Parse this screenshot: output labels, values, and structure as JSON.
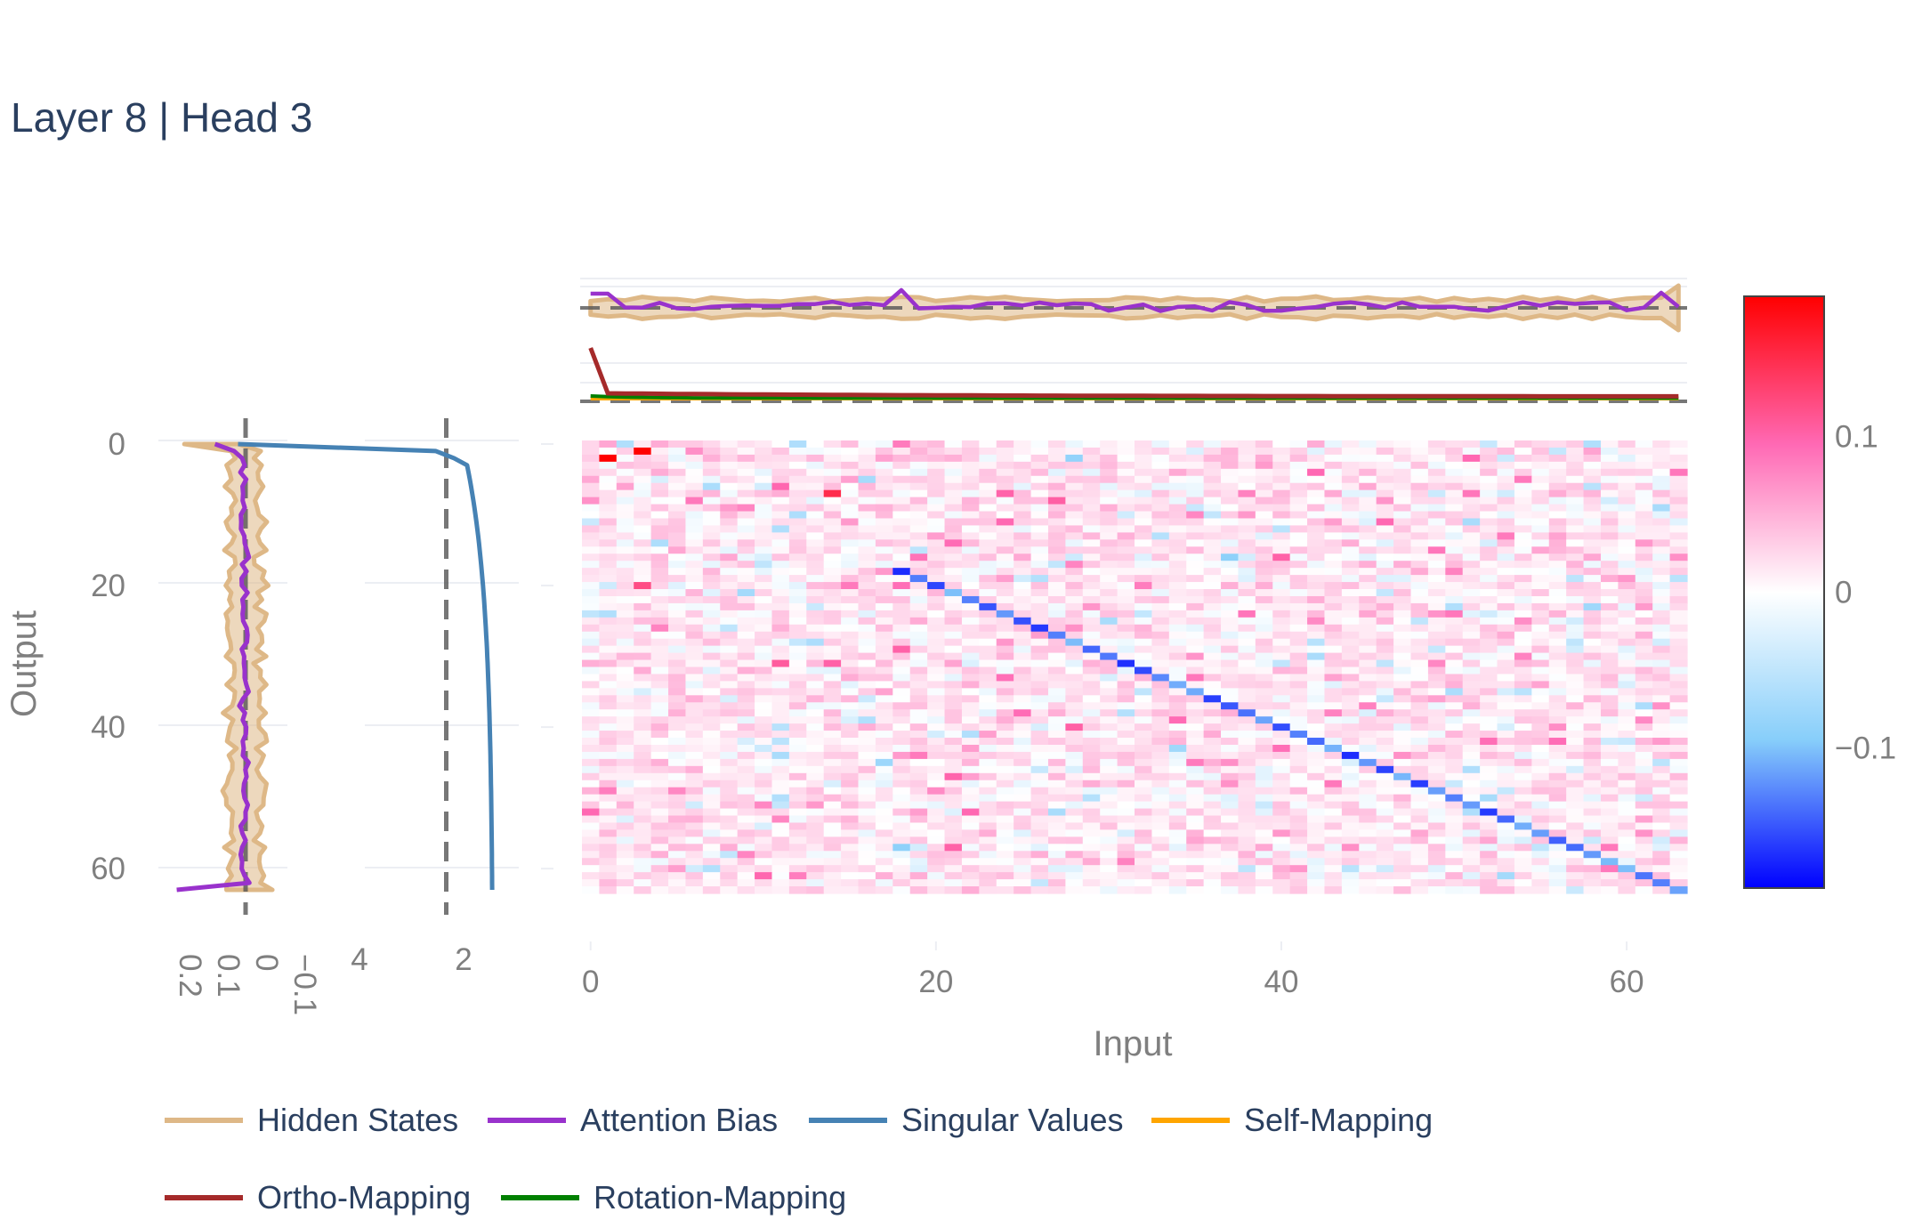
{
  "chart_data": {
    "type": "heatmap",
    "title": "Layer 8 | Head 3",
    "xlabel": "Input",
    "ylabel": "Output",
    "grid_size": 64,
    "heatmap": {
      "x_ticks": [
        "0",
        "20",
        "40",
        "60"
      ],
      "y_ticks": [
        "0",
        "20",
        "40",
        "60"
      ],
      "xlim": [
        0,
        63
      ],
      "ylim": [
        63,
        0
      ],
      "zlim": [
        -0.19,
        0.19
      ],
      "diagonal_values_range": [
        -0.17,
        -0.1
      ],
      "off_diagonal_range": [
        -0.12,
        0.19
      ],
      "notable_cells": [
        {
          "row": 2,
          "col": 1,
          "value": 0.19
        },
        {
          "row": 1,
          "col": 3,
          "value": 0.19
        },
        {
          "row": 7,
          "col": 14,
          "value": 0.15
        },
        {
          "row": 18,
          "col": 18,
          "value": -0.17
        },
        {
          "row": 20,
          "col": 3,
          "value": 0.12
        }
      ]
    },
    "colorbar": {
      "ticks": [
        "0.1",
        "0",
        "−0.1"
      ],
      "colors": [
        "#0000ff",
        "#87cefa",
        "#ffffff",
        "#ff69b4",
        "#ff0000"
      ]
    },
    "left_profile": {
      "tick_labels": [
        "0.2",
        "0.1",
        "0",
        "−0.1"
      ],
      "xlim": [
        0.25,
        -0.14
      ],
      "hidden_states_band": {
        "typical_halfwidth": 0.04
      },
      "attention_bias": {
        "start": 0.08,
        "end": 0.12,
        "range_middle": [
          -0.02,
          0.03
        ]
      }
    },
    "singular_values": {
      "tick_labels": [
        "4",
        "2"
      ],
      "xlim": [
        5.3,
        -0.2
      ],
      "values_head": [
        5.0,
        1.2,
        0.85,
        0.6
      ],
      "values_tail_end": 0.1,
      "reference_line": 1.0
    },
    "top_panel": {
      "hidden_states_band": {
        "level": 0.0,
        "halfwidth": 0.02
      },
      "attention_bias": {
        "range": [
          -0.03,
          0.04
        ]
      },
      "ortho_mapping": {
        "start": 1.0,
        "drops_to": 0.15,
        "end": 0.09
      },
      "rotation_mapping": {
        "start": 0.1,
        "end": 0.06
      },
      "self_mapping": {
        "level": 0.05
      }
    },
    "series": [
      {
        "name": "Hidden States",
        "color": "#deb887"
      },
      {
        "name": "Attention Bias",
        "color": "#9932cc"
      },
      {
        "name": "Singular Values",
        "color": "#4682b4"
      },
      {
        "name": "Self-Mapping",
        "color": "#ffa500"
      },
      {
        "name": "Ortho-Mapping",
        "color": "#a52a2a"
      },
      {
        "name": "Rotation-Mapping",
        "color": "#008000"
      }
    ]
  }
}
